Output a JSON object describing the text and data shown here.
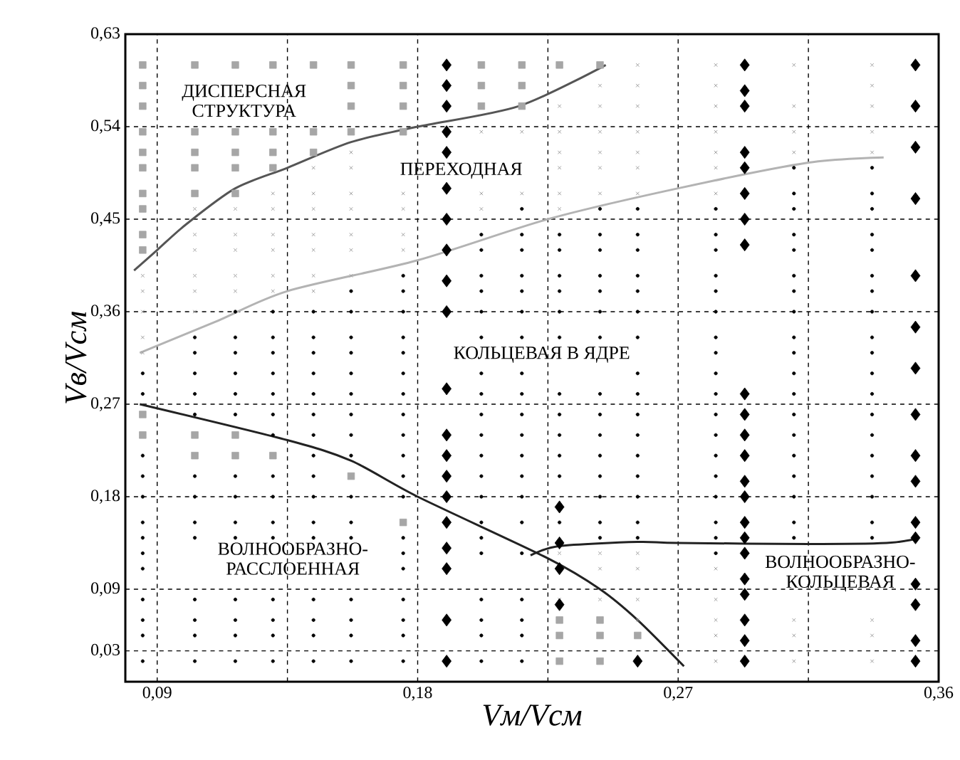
{
  "chart_data": {
    "type": "scatter",
    "xlabel": "Vм/Vсм",
    "ylabel": "Vв/Vсм",
    "xlim": [
      0.079,
      0.36
    ],
    "ylim": [
      0,
      0.63
    ],
    "xticks": [
      {
        "value": 0.09,
        "label": "0,09"
      },
      {
        "value": 0.135,
        "label": null
      },
      {
        "value": 0.18,
        "label": "0,18"
      },
      {
        "value": 0.225,
        "label": null
      },
      {
        "value": 0.27,
        "label": "0,27"
      },
      {
        "value": 0.315,
        "label": null
      },
      {
        "value": 0.36,
        "label": "0,36"
      }
    ],
    "yticks": [
      {
        "value": 0.03,
        "label": "0,03"
      },
      {
        "value": 0.09,
        "label": "0,09"
      },
      {
        "value": 0.18,
        "label": "0,18"
      },
      {
        "value": 0.27,
        "label": "0,27"
      },
      {
        "value": 0.36,
        "label": "0,36"
      },
      {
        "value": 0.45,
        "label": "0,45"
      },
      {
        "value": 0.54,
        "label": "0,54"
      },
      {
        "value": 0.63,
        "label": "0,63"
      }
    ],
    "grid": true,
    "series": [
      {
        "marker": "square",
        "color": "#a6a6a6",
        "x": [
          0.085,
          0.085,
          0.085,
          0.085,
          0.085,
          0.085,
          0.085,
          0.085,
          0.085,
          0.085,
          0.085,
          0.085,
          0.103,
          0.103,
          0.103,
          0.103,
          0.103,
          0.103,
          0.103,
          0.117,
          0.117,
          0.117,
          0.117,
          0.117,
          0.117,
          0.117,
          0.13,
          0.13,
          0.13,
          0.13,
          0.13,
          0.144,
          0.144,
          0.144,
          0.157,
          0.157,
          0.157,
          0.157,
          0.157,
          0.175,
          0.175,
          0.175,
          0.175,
          0.175,
          0.202,
          0.202,
          0.202,
          0.216,
          0.216,
          0.216,
          0.229,
          0.229,
          0.229,
          0.229,
          0.243,
          0.243,
          0.243,
          0.243,
          0.256
        ],
        "values": [
          0.6,
          0.58,
          0.56,
          0.535,
          0.515,
          0.5,
          0.475,
          0.46,
          0.435,
          0.42,
          0.26,
          0.24,
          0.6,
          0.535,
          0.515,
          0.5,
          0.475,
          0.24,
          0.22,
          0.6,
          0.535,
          0.515,
          0.5,
          0.475,
          0.24,
          0.22,
          0.6,
          0.535,
          0.515,
          0.5,
          0.22,
          0.6,
          0.535,
          0.515,
          0.6,
          0.58,
          0.56,
          0.535,
          0.2,
          0.6,
          0.58,
          0.56,
          0.535,
          0.155,
          0.6,
          0.58,
          0.56,
          0.6,
          0.58,
          0.56,
          0.6,
          0.06,
          0.045,
          0.02,
          0.6,
          0.06,
          0.045,
          0.02,
          0.045
        ]
      },
      {
        "marker": "cross",
        "color": "#a0a0a0",
        "x": [
          0.085,
          0.085,
          0.085,
          0.085,
          0.085,
          0.103,
          0.103,
          0.103,
          0.103,
          0.103,
          0.103,
          0.117,
          0.117,
          0.117,
          0.117,
          0.117,
          0.13,
          0.13,
          0.13,
          0.13,
          0.13,
          0.13,
          0.144,
          0.144,
          0.144,
          0.144,
          0.144,
          0.144,
          0.144,
          0.157,
          0.157,
          0.157,
          0.157,
          0.157,
          0.157,
          0.157,
          0.175,
          0.175,
          0.175,
          0.175,
          0.202,
          0.202,
          0.202,
          0.216,
          0.216,
          0.229,
          0.229,
          0.229,
          0.229,
          0.229,
          0.229,
          0.229,
          0.229,
          0.243,
          0.243,
          0.243,
          0.243,
          0.243,
          0.243,
          0.243,
          0.243,
          0.243,
          0.256,
          0.256,
          0.256,
          0.256,
          0.256,
          0.256,
          0.256,
          0.256,
          0.256,
          0.256,
          0.256,
          0.283,
          0.283,
          0.283,
          0.283,
          0.283,
          0.283,
          0.283,
          0.283,
          0.283,
          0.283,
          0.283,
          0.283,
          0.31,
          0.31,
          0.31,
          0.31,
          0.31,
          0.31,
          0.31,
          0.337,
          0.337,
          0.337,
          0.337,
          0.337,
          0.337,
          0.337,
          0.337
        ],
        "values": [
          0.395,
          0.38,
          0.36,
          0.335,
          0.32,
          0.46,
          0.435,
          0.42,
          0.395,
          0.38,
          0.36,
          0.46,
          0.435,
          0.42,
          0.395,
          0.38,
          0.475,
          0.46,
          0.435,
          0.42,
          0.395,
          0.38,
          0.5,
          0.475,
          0.46,
          0.435,
          0.42,
          0.395,
          0.38,
          0.515,
          0.5,
          0.475,
          0.46,
          0.435,
          0.42,
          0.395,
          0.475,
          0.46,
          0.435,
          0.42,
          0.535,
          0.475,
          0.46,
          0.535,
          0.475,
          0.56,
          0.535,
          0.515,
          0.5,
          0.475,
          0.46,
          0.125,
          0.08,
          0.58,
          0.56,
          0.535,
          0.515,
          0.5,
          0.475,
          0.125,
          0.11,
          0.08,
          0.6,
          0.58,
          0.56,
          0.535,
          0.515,
          0.5,
          0.475,
          0.125,
          0.11,
          0.08,
          0.06,
          0.6,
          0.58,
          0.56,
          0.535,
          0.515,
          0.5,
          0.475,
          0.11,
          0.08,
          0.06,
          0.045,
          0.02,
          0.6,
          0.56,
          0.535,
          0.515,
          0.06,
          0.045,
          0.02,
          0.6,
          0.58,
          0.56,
          0.535,
          0.515,
          0.06,
          0.045,
          0.02
        ]
      },
      {
        "marker": "circle",
        "color": "#000000",
        "x": [
          0.085,
          0.085,
          0.085,
          0.085,
          0.085,
          0.085,
          0.085,
          0.085,
          0.085,
          0.085,
          0.085,
          0.085,
          0.085,
          0.103,
          0.103,
          0.103,
          0.103,
          0.103,
          0.103,
          0.103,
          0.103,
          0.103,
          0.103,
          0.103,
          0.103,
          0.103,
          0.117,
          0.117,
          0.117,
          0.117,
          0.117,
          0.117,
          0.117,
          0.117,
          0.117,
          0.117,
          0.117,
          0.117,
          0.117,
          0.117,
          0.13,
          0.13,
          0.13,
          0.13,
          0.13,
          0.13,
          0.13,
          0.13,
          0.13,
          0.13,
          0.13,
          0.13,
          0.13,
          0.13,
          0.13,
          0.144,
          0.144,
          0.144,
          0.144,
          0.144,
          0.144,
          0.144,
          0.144,
          0.144,
          0.144,
          0.144,
          0.144,
          0.144,
          0.144,
          0.144,
          0.144,
          0.157,
          0.157,
          0.157,
          0.157,
          0.157,
          0.157,
          0.157,
          0.157,
          0.157,
          0.157,
          0.157,
          0.157,
          0.157,
          0.157,
          0.157,
          0.157,
          0.175,
          0.175,
          0.175,
          0.175,
          0.175,
          0.175,
          0.175,
          0.175,
          0.175,
          0.175,
          0.175,
          0.175,
          0.175,
          0.175,
          0.175,
          0.175,
          0.175,
          0.175,
          0.175,
          0.202,
          0.202,
          0.202,
          0.202,
          0.202,
          0.202,
          0.202,
          0.202,
          0.202,
          0.202,
          0.202,
          0.202,
          0.202,
          0.202,
          0.202,
          0.202,
          0.202,
          0.202,
          0.202,
          0.202,
          0.216,
          0.216,
          0.216,
          0.216,
          0.216,
          0.216,
          0.216,
          0.216,
          0.216,
          0.216,
          0.216,
          0.216,
          0.216,
          0.216,
          0.216,
          0.216,
          0.216,
          0.216,
          0.216,
          0.216,
          0.229,
          0.229,
          0.229,
          0.229,
          0.229,
          0.229,
          0.229,
          0.229,
          0.229,
          0.229,
          0.229,
          0.229,
          0.243,
          0.243,
          0.243,
          0.243,
          0.243,
          0.243,
          0.243,
          0.243,
          0.243,
          0.243,
          0.243,
          0.243,
          0.243,
          0.243,
          0.243,
          0.256,
          0.256,
          0.256,
          0.256,
          0.256,
          0.256,
          0.256,
          0.256,
          0.256,
          0.256,
          0.256,
          0.256,
          0.256,
          0.256,
          0.256,
          0.256,
          0.283,
          0.283,
          0.283,
          0.283,
          0.283,
          0.283,
          0.283,
          0.283,
          0.283,
          0.283,
          0.283,
          0.283,
          0.283,
          0.283,
          0.283,
          0.283,
          0.283,
          0.283,
          0.31,
          0.31,
          0.31,
          0.31,
          0.31,
          0.31,
          0.31,
          0.31,
          0.31,
          0.31,
          0.31,
          0.31,
          0.31,
          0.31,
          0.31,
          0.31,
          0.31,
          0.31,
          0.31,
          0.337,
          0.337,
          0.337,
          0.337,
          0.337,
          0.337,
          0.337,
          0.337,
          0.337,
          0.337,
          0.337,
          0.337,
          0.337,
          0.337,
          0.337,
          0.337,
          0.337,
          0.337,
          0.337
        ],
        "values": [
          0.3,
          0.28,
          0.22,
          0.2,
          0.18,
          0.155,
          0.14,
          0.125,
          0.11,
          0.08,
          0.06,
          0.045,
          0.02,
          0.335,
          0.32,
          0.3,
          0.28,
          0.26,
          0.2,
          0.18,
          0.155,
          0.14,
          0.08,
          0.06,
          0.045,
          0.02,
          0.36,
          0.335,
          0.32,
          0.3,
          0.28,
          0.26,
          0.2,
          0.18,
          0.155,
          0.14,
          0.08,
          0.06,
          0.045,
          0.02,
          0.36,
          0.335,
          0.32,
          0.3,
          0.28,
          0.26,
          0.24,
          0.2,
          0.18,
          0.155,
          0.14,
          0.08,
          0.06,
          0.045,
          0.02,
          0.36,
          0.335,
          0.32,
          0.3,
          0.28,
          0.26,
          0.24,
          0.22,
          0.2,
          0.18,
          0.155,
          0.14,
          0.08,
          0.06,
          0.045,
          0.02,
          0.38,
          0.36,
          0.335,
          0.32,
          0.3,
          0.28,
          0.26,
          0.24,
          0.22,
          0.18,
          0.155,
          0.14,
          0.08,
          0.06,
          0.045,
          0.02,
          0.395,
          0.38,
          0.36,
          0.335,
          0.32,
          0.3,
          0.28,
          0.26,
          0.24,
          0.22,
          0.2,
          0.18,
          0.14,
          0.125,
          0.11,
          0.08,
          0.06,
          0.045,
          0.02,
          0.435,
          0.42,
          0.395,
          0.38,
          0.36,
          0.335,
          0.3,
          0.28,
          0.26,
          0.24,
          0.22,
          0.2,
          0.18,
          0.155,
          0.14,
          0.125,
          0.08,
          0.06,
          0.045,
          0.02,
          0.46,
          0.435,
          0.42,
          0.395,
          0.38,
          0.36,
          0.335,
          0.3,
          0.28,
          0.26,
          0.24,
          0.22,
          0.2,
          0.18,
          0.155,
          0.125,
          0.08,
          0.06,
          0.045,
          0.02,
          0.435,
          0.42,
          0.395,
          0.38,
          0.36,
          0.335,
          0.28,
          0.26,
          0.24,
          0.22,
          0.2,
          0.155,
          0.46,
          0.435,
          0.42,
          0.395,
          0.38,
          0.36,
          0.335,
          0.28,
          0.26,
          0.24,
          0.22,
          0.2,
          0.18,
          0.155,
          0.14,
          0.46,
          0.435,
          0.42,
          0.395,
          0.38,
          0.36,
          0.335,
          0.3,
          0.28,
          0.26,
          0.24,
          0.22,
          0.2,
          0.18,
          0.155,
          0.14,
          0.46,
          0.435,
          0.42,
          0.395,
          0.38,
          0.36,
          0.335,
          0.32,
          0.3,
          0.28,
          0.26,
          0.24,
          0.22,
          0.2,
          0.18,
          0.155,
          0.14,
          0.125,
          0.5,
          0.475,
          0.46,
          0.435,
          0.42,
          0.395,
          0.38,
          0.36,
          0.335,
          0.32,
          0.3,
          0.28,
          0.26,
          0.24,
          0.22,
          0.2,
          0.18,
          0.155,
          0.14,
          0.5,
          0.475,
          0.46,
          0.435,
          0.42,
          0.395,
          0.38,
          0.36,
          0.335,
          0.32,
          0.3,
          0.28,
          0.26,
          0.24,
          0.22,
          0.2,
          0.18,
          0.155,
          0.14
        ]
      },
      {
        "marker": "diamond",
        "color": "#000000",
        "x": [
          0.19,
          0.19,
          0.19,
          0.19,
          0.19,
          0.19,
          0.19,
          0.19,
          0.19,
          0.19,
          0.19,
          0.19,
          0.19,
          0.19,
          0.19,
          0.19,
          0.19,
          0.19,
          0.19,
          0.19,
          0.293,
          0.293,
          0.293,
          0.293,
          0.293,
          0.293,
          0.293,
          0.293,
          0.293,
          0.293,
          0.293,
          0.293,
          0.293,
          0.293,
          0.293,
          0.293,
          0.293,
          0.293,
          0.293,
          0.293,
          0.293,
          0.293,
          0.352,
          0.352,
          0.352,
          0.352,
          0.352,
          0.352,
          0.352,
          0.352,
          0.352,
          0.352,
          0.352,
          0.352,
          0.352,
          0.352,
          0.352,
          0.352,
          0.229,
          0.229,
          0.229,
          0.229,
          0.256
        ],
        "values": [
          0.6,
          0.58,
          0.56,
          0.535,
          0.515,
          0.48,
          0.45,
          0.42,
          0.39,
          0.36,
          0.285,
          0.24,
          0.22,
          0.2,
          0.18,
          0.155,
          0.13,
          0.11,
          0.06,
          0.02,
          0.6,
          0.575,
          0.56,
          0.515,
          0.5,
          0.475,
          0.45,
          0.425,
          0.28,
          0.26,
          0.24,
          0.22,
          0.195,
          0.18,
          0.155,
          0.14,
          0.125,
          0.1,
          0.085,
          0.06,
          0.04,
          0.02,
          0.6,
          0.56,
          0.52,
          0.47,
          0.395,
          0.345,
          0.305,
          0.26,
          0.22,
          0.195,
          0.155,
          0.14,
          0.095,
          0.075,
          0.04,
          0.02,
          0.17,
          0.135,
          0.11,
          0.075,
          0.02
        ]
      },
      {
        "type": "line",
        "color": "#555555",
        "x": [
          0.082,
          0.09,
          0.1,
          0.117,
          0.135,
          0.157,
          0.18,
          0.215,
          0.245
        ],
        "values": [
          0.4,
          0.42,
          0.445,
          0.48,
          0.5,
          0.525,
          0.54,
          0.56,
          0.6
        ]
      },
      {
        "type": "line",
        "color": "#b3b3b3",
        "x": [
          0.084,
          0.11,
          0.135,
          0.18,
          0.225,
          0.27,
          0.315,
          0.341
        ],
        "values": [
          0.32,
          0.35,
          0.38,
          0.41,
          0.45,
          0.48,
          0.505,
          0.51
        ]
      },
      {
        "type": "line",
        "color": "#222222",
        "x": [
          0.084,
          0.135,
          0.157,
          0.18,
          0.225,
          0.243,
          0.256,
          0.272
        ],
        "values": [
          0.27,
          0.235,
          0.215,
          0.18,
          0.12,
          0.09,
          0.06,
          0.015
        ]
      },
      {
        "type": "line",
        "color": "#222222",
        "x": [
          0.219,
          0.229,
          0.256,
          0.27,
          0.315,
          0.342,
          0.352
        ],
        "values": [
          0.123,
          0.132,
          0.136,
          0.135,
          0.134,
          0.135,
          0.139
        ]
      }
    ],
    "annotations": [
      "ДИСПЕРСНАЯ СТРУКТУРА",
      "ПЕРЕХОДНАЯ",
      "КОЛЬЦЕВАЯ В ЯДРЕ",
      "ВОЛНООБРАЗНО-РАССЛОЕННАЯ",
      "ВОЛНООБРАЗНО-КОЛЬЦЕВАЯ"
    ]
  }
}
